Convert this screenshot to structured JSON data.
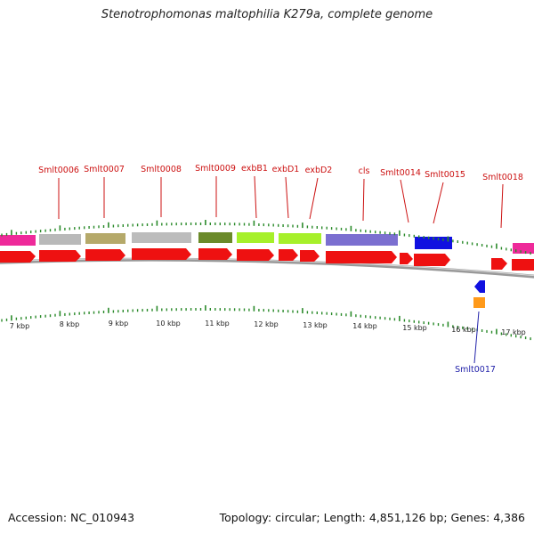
{
  "title": "Stenotrophomonas maltophilia K279a, complete genome",
  "footer": {
    "accession": "Accession: NC_010943",
    "summary": "Topology: circular; Length: 4,851,126 bp; Genes: 4,386"
  },
  "colors": {
    "cds": "#ee1111",
    "label_top": "#cc1111",
    "label_bottom": "#2222aa",
    "tick": "#2a8a2a",
    "backbone": "#888888"
  },
  "kbp_labels": [
    "7 kbp",
    "8 kbp",
    "9 kbp",
    "10 kbp",
    "11 kbp",
    "12 kbp",
    "13 kbp",
    "14 kbp",
    "15 kbp",
    "16 kbp",
    "17 kbp"
  ],
  "gene_labels_top": [
    "Smlt0006",
    "Smlt0007",
    "Smlt0008",
    "Smlt0009",
    "exbB1",
    "exbD1",
    "exbD2",
    "cls",
    "Smlt0014",
    "Smlt0015",
    "Smlt0018"
  ],
  "gene_labels_bottom": [
    "Smlt0017"
  ]
}
